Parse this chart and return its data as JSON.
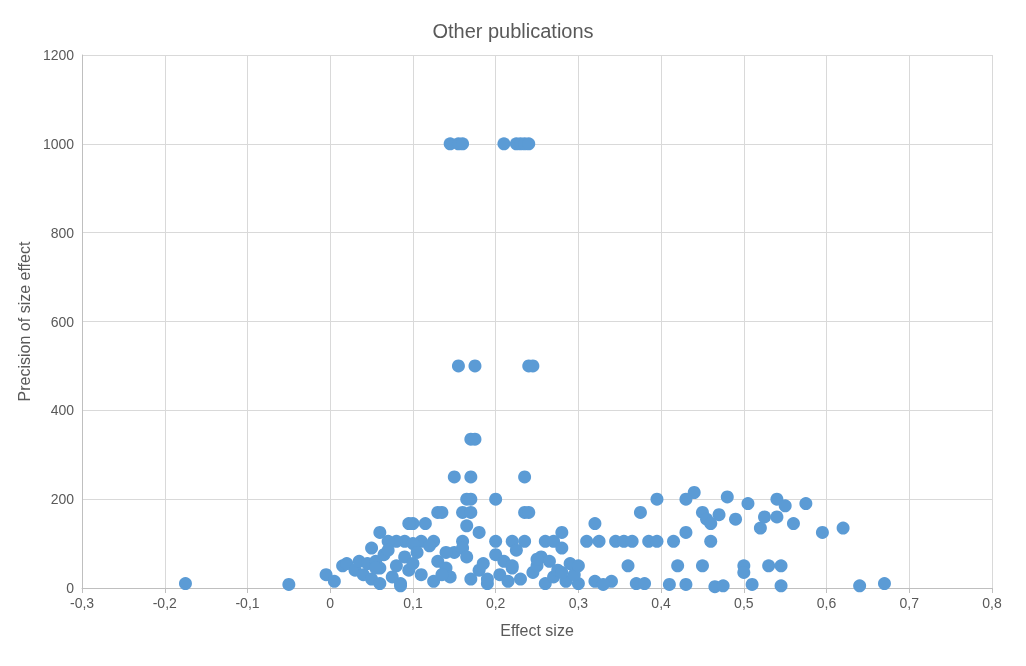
{
  "chart_data": {
    "type": "scatter",
    "title": "Other publications",
    "xlabel": "Effect size",
    "ylabel": "Precision of size effect",
    "color": "#5b9bd5",
    "marker": "circle",
    "grid": true,
    "xlim": [
      -0.3,
      0.8
    ],
    "ylim": [
      0,
      1200
    ],
    "xticks": [
      {
        "value": -0.3,
        "label": "-0,3"
      },
      {
        "value": -0.2,
        "label": "-0,2"
      },
      {
        "value": -0.1,
        "label": "-0,1"
      },
      0,
      {
        "value": 0.1,
        "label": "0,1"
      },
      {
        "value": 0.2,
        "label": "0,2"
      },
      {
        "value": 0.3,
        "label": "0,3"
      },
      {
        "value": 0.4,
        "label": "0,4"
      },
      {
        "value": 0.5,
        "label": "0,5"
      },
      {
        "value": 0.6,
        "label": "0,6"
      },
      {
        "value": 0.7,
        "label": "0,7"
      },
      {
        "value": 0.8,
        "label": "0,8"
      }
    ],
    "yticks": [
      0,
      200,
      400,
      600,
      800,
      1000,
      1200
    ],
    "x": [
      0.145,
      0.155,
      0.16,
      0.21,
      0.225,
      0.23,
      0.235,
      0.24,
      0.155,
      0.175,
      0.24,
      0.245,
      0.17,
      0.175,
      0.15,
      0.17,
      0.235,
      0.44,
      0.48,
      0.395,
      0.43,
      0.54,
      0.165,
      0.17,
      0.2,
      0.505,
      0.575,
      0.55,
      0.13,
      0.135,
      0.16,
      0.17,
      0.235,
      0.24,
      0.375,
      0.45,
      0.47,
      0.525,
      0.54,
      0.49,
      0.455,
      0.1,
      0.095,
      0.115,
      0.32,
      0.46,
      0.56,
      0.165,
      0.52,
      0.62,
      0.06,
      0.18,
      0.28,
      0.43,
      0.595,
      0.31,
      0.325,
      0.345,
      0.355,
      0.365,
      0.385,
      0.395,
      0.415,
      0.46,
      0.235,
      0.22,
      0.2,
      0.26,
      0.27,
      0.16,
      0.11,
      0.09,
      0.08,
      0.07,
      0.125,
      0.1,
      0.42,
      0.45,
      0.5,
      0.5,
      0.53,
      0.545,
      0.36,
      0.34,
      0.32,
      0.33,
      0.37,
      0.38,
      0.41,
      0.43,
      0.465,
      0.475,
      0.51,
      0.545,
      0.64,
      0.67,
      0.3,
      -0.175,
      -0.05,
      -0.005,
      0.005,
      0.015,
      0.02,
      0.03,
      0.035,
      0.04,
      0.045,
      0.05,
      0.05,
      0.055,
      0.06,
      0.065,
      0.07,
      0.075,
      0.08,
      0.085,
      0.09,
      0.095,
      0.1,
      0.105,
      0.11,
      0.12,
      0.125,
      0.13,
      0.14,
      0.145,
      0.15,
      0.16,
      0.165,
      0.17,
      0.18,
      0.185,
      0.19,
      0.2,
      0.205,
      0.21,
      0.215,
      0.22,
      0.225,
      0.23,
      0.245,
      0.25,
      0.255,
      0.26,
      0.265,
      0.27,
      0.275,
      0.28,
      0.285,
      0.29,
      0.295,
      0.3,
      0.055,
      0.085,
      0.14,
      0.19,
      0.25,
      0.28,
      0.06,
      0.135,
      0.22
    ],
    "values": [
      1000,
      1000,
      1000,
      1000,
      1000,
      1000,
      1000,
      1000,
      500,
      500,
      500,
      500,
      335,
      335,
      250,
      250,
      250,
      215,
      205,
      200,
      200,
      200,
      200,
      200,
      200,
      190,
      190,
      185,
      170,
      170,
      170,
      170,
      170,
      170,
      170,
      170,
      165,
      160,
      160,
      155,
      155,
      145,
      145,
      145,
      145,
      145,
      145,
      140,
      135,
      135,
      125,
      125,
      125,
      125,
      125,
      105,
      105,
      105,
      105,
      105,
      105,
      105,
      105,
      105,
      105,
      105,
      105,
      105,
      105,
      105,
      105,
      105,
      105,
      105,
      105,
      100,
      50,
      50,
      50,
      35,
      50,
      50,
      50,
      15,
      15,
      8,
      10,
      10,
      8,
      8,
      3,
      5,
      8,
      5,
      5,
      10,
      10,
      10,
      8,
      30,
      15,
      50,
      55,
      40,
      60,
      30,
      55,
      90,
      20,
      60,
      45,
      75,
      85,
      25,
      50,
      10,
      70,
      40,
      55,
      80,
      30,
      95,
      15,
      60,
      45,
      25,
      80,
      90,
      70,
      20,
      40,
      55,
      10,
      75,
      30,
      60,
      15,
      45,
      85,
      20,
      35,
      50,
      70,
      10,
      60,
      25,
      40,
      90,
      15,
      55,
      30,
      50,
      45,
      5,
      80,
      20,
      65,
      35,
      10,
      30,
      50
    ]
  }
}
